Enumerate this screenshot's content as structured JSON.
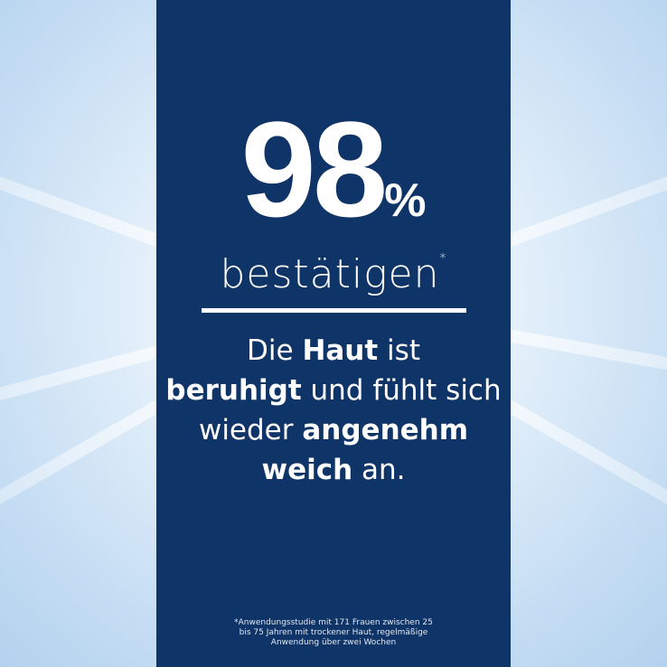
{
  "colors": {
    "panel": "#0f3467",
    "background": "#c5ddf3",
    "text": "#ffffff"
  },
  "headline": {
    "number": "98",
    "percent": "%",
    "verb": "bestätigen",
    "asterisk": "*"
  },
  "claim": {
    "parts": [
      "Die ",
      "Haut",
      " ist ",
      "beruhigt",
      " und fühlt sich wieder ",
      "angenehm weich",
      " an."
    ]
  },
  "footnote": "*Anwendungsstudie mit 171 Frauen zwischen 25 bis 75 Jahren mit trockener Haut, regelmäßige Anwendung über zwei Wochen"
}
